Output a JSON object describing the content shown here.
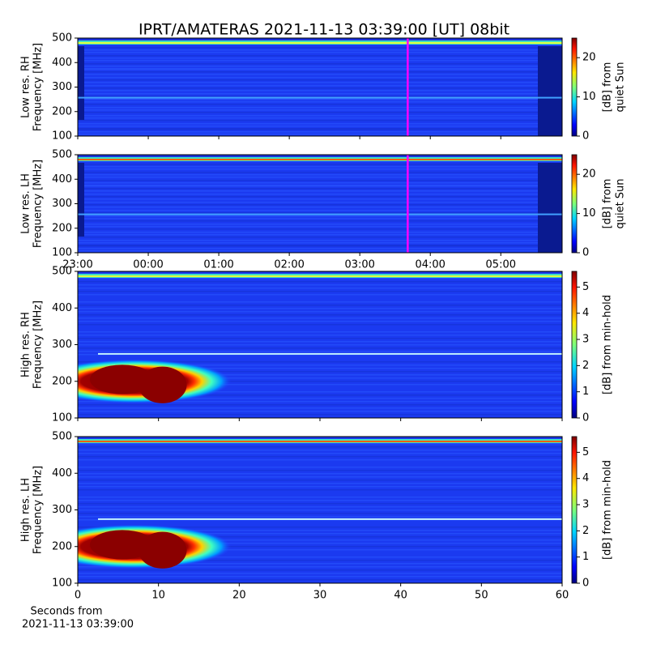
{
  "title": "IPRT/AMATERAS 2021-11-13 03:39:00 [UT]   08bit",
  "chart_data": [
    {
      "type": "heatmap",
      "ylabel": [
        "Low res. RH",
        "Frequency [MHz]"
      ],
      "ylim": [
        100,
        500
      ],
      "yticks": [
        100,
        200,
        300,
        400,
        500
      ],
      "xlim": [
        0,
        6.87
      ],
      "marker_x": 4.68,
      "marker_color": "#ff00ff",
      "colorbar": {
        "label": [
          "[dB] from",
          "quiet Sun"
        ],
        "lim": [
          0,
          25
        ],
        "ticks": [
          0,
          10,
          20
        ]
      }
    },
    {
      "type": "heatmap",
      "ylabel": [
        "Low res. LH",
        "Frequency [MHz]"
      ],
      "ylim": [
        100,
        500
      ],
      "yticks": [
        100,
        200,
        300,
        400,
        500
      ],
      "xlim": [
        0,
        6.87
      ],
      "marker_x": 4.68,
      "marker_color": "#ff00ff",
      "xticks": [
        {
          "value": 0,
          "label": "23:00"
        },
        {
          "value": 1,
          "label": "00:00"
        },
        {
          "value": 2,
          "label": "01:00"
        },
        {
          "value": 3,
          "label": "02:00"
        },
        {
          "value": 4,
          "label": "03:00"
        },
        {
          "value": 5,
          "label": "04:00"
        },
        {
          "value": 6,
          "label": "05:00"
        }
      ],
      "colorbar": {
        "label": [
          "[dB] from",
          "quiet Sun"
        ],
        "lim": [
          0,
          25
        ],
        "ticks": [
          0,
          10,
          20
        ]
      }
    },
    {
      "type": "heatmap",
      "ylabel": [
        "High res. RH",
        "Frequency [MHz]"
      ],
      "ylim": [
        100,
        500
      ],
      "yticks": [
        100,
        200,
        300,
        400,
        500
      ],
      "xlim": [
        0,
        60
      ],
      "colorbar": {
        "label": [
          "[dB] from min-hold"
        ],
        "lim": [
          0,
          5.6
        ],
        "ticks": [
          0,
          1,
          2,
          3,
          4,
          5
        ]
      }
    },
    {
      "type": "heatmap",
      "ylabel": [
        "High res. LH",
        "Frequency [MHz]"
      ],
      "ylim": [
        100,
        500
      ],
      "yticks": [
        100,
        200,
        300,
        400,
        500
      ],
      "xlim": [
        0,
        60
      ],
      "xticks": [
        0,
        10,
        20,
        30,
        40,
        50,
        60
      ],
      "xlabel": [
        "Seconds from",
        "2021-11-13 03:39:00"
      ],
      "colorbar": {
        "label": [
          "[dB] from min-hold"
        ],
        "lim": [
          0,
          5.6
        ],
        "ticks": [
          0,
          1,
          2,
          3,
          4,
          5
        ]
      }
    }
  ]
}
